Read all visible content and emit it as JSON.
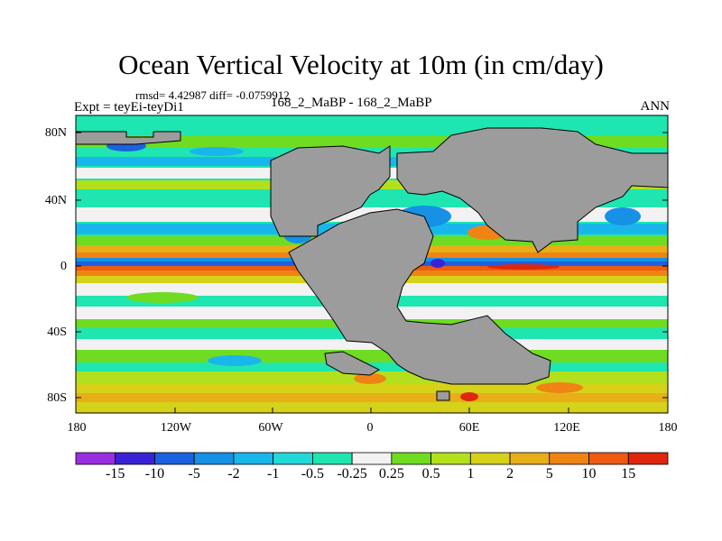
{
  "title": "Ocean Vertical Velocity at 10m (in cm/day)",
  "stats": "rmsd= 4.42987 diff= -0.0759912",
  "expt_label": "Expt = teyEi-teyDi1",
  "case_label": "168_2_MaBP - 168_2_MaBP",
  "season": "ANN",
  "y_ticks": [
    "80N",
    "40N",
    "0",
    "40S",
    "80S"
  ],
  "x_ticks": [
    "180",
    "120W",
    "60W",
    "0",
    "60E",
    "120E",
    "180"
  ],
  "colorbar": {
    "labels": [
      "-15",
      "-10",
      "-5",
      "-2",
      "-1",
      "-0.5",
      "-0.25",
      "0.25",
      "0.5",
      "1",
      "2",
      "5",
      "10",
      "15"
    ],
    "colors": [
      "#9a2fe0",
      "#3a22d6",
      "#1b62e0",
      "#1691e6",
      "#19b6ec",
      "#23d8d9",
      "#1fe6b0",
      "#f2f2f2",
      "#6fdc22",
      "#b3e01c",
      "#d6d21a",
      "#e7ae18",
      "#ef8414",
      "#ee5a12",
      "#e0260c"
    ]
  },
  "land_color": "#9c9c9c"
}
